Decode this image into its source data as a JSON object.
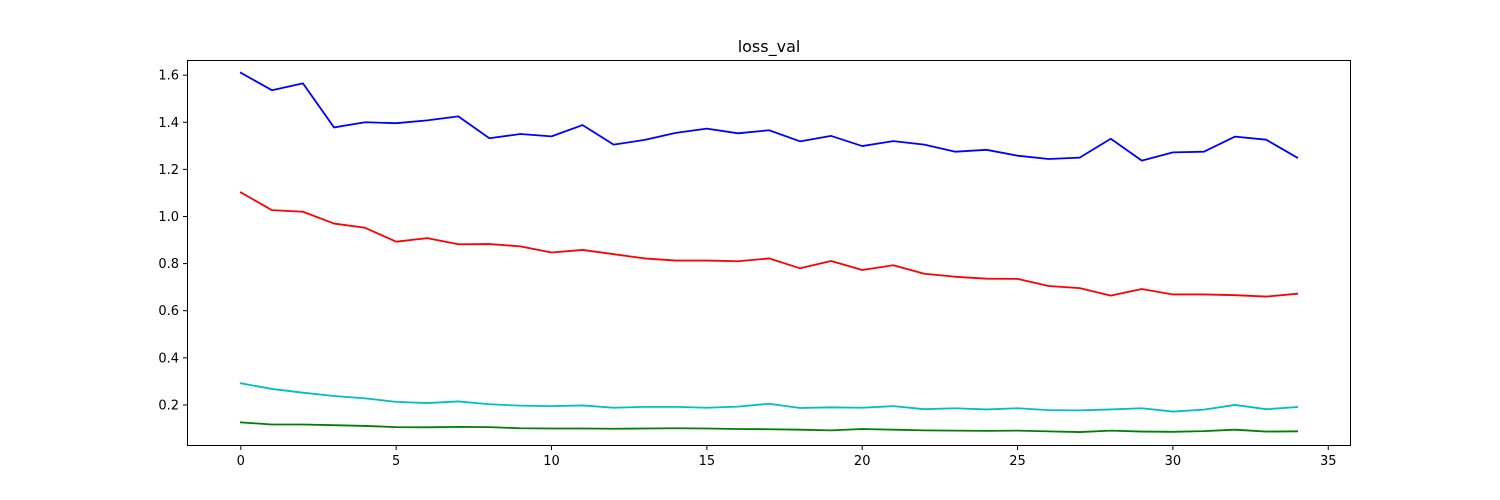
{
  "chart_data": {
    "type": "line",
    "title": "loss_val",
    "xlabel": "",
    "ylabel": "",
    "xlim": [
      -1.7,
      35.7
    ],
    "ylim": [
      0.03,
      1.66
    ],
    "xticks": [
      0,
      5,
      10,
      15,
      20,
      25,
      30,
      35
    ],
    "xtick_labels": [
      "0",
      "5",
      "10",
      "15",
      "20",
      "25",
      "30",
      "35"
    ],
    "yticks": [
      0.2,
      0.4,
      0.6,
      0.8,
      1.0,
      1.2,
      1.4,
      1.6
    ],
    "ytick_labels": [
      "0.2",
      "0.4",
      "0.6",
      "0.8",
      "1.0",
      "1.2",
      "1.4",
      "1.6"
    ],
    "grid": false,
    "x": [
      0,
      1,
      2,
      3,
      4,
      5,
      6,
      7,
      8,
      9,
      10,
      11,
      12,
      13,
      14,
      15,
      16,
      17,
      18,
      19,
      20,
      21,
      22,
      23,
      24,
      25,
      26,
      27,
      28,
      29,
      30,
      31,
      32,
      33,
      34
    ],
    "series": [
      {
        "color": "#0000ff",
        "values": [
          1.61,
          1.536,
          1.565,
          1.378,
          1.4,
          1.396,
          1.408,
          1.425,
          1.332,
          1.35,
          1.34,
          1.388,
          1.305,
          1.325,
          1.355,
          1.373,
          1.353,
          1.366,
          1.319,
          1.342,
          1.299,
          1.32,
          1.305,
          1.275,
          1.283,
          1.258,
          1.244,
          1.25,
          1.33,
          1.237,
          1.272,
          1.275,
          1.339,
          1.326,
          1.25
        ]
      },
      {
        "color": "#ff0000",
        "values": [
          1.102,
          1.027,
          1.02,
          0.97,
          0.952,
          0.893,
          0.908,
          0.882,
          0.883,
          0.873,
          0.847,
          0.858,
          0.84,
          0.822,
          0.813,
          0.813,
          0.81,
          0.822,
          0.78,
          0.811,
          0.773,
          0.793,
          0.757,
          0.744,
          0.736,
          0.735,
          0.705,
          0.696,
          0.664,
          0.692,
          0.669,
          0.669,
          0.666,
          0.66,
          0.672
        ]
      },
      {
        "color": "#00bfbf",
        "values": [
          0.292,
          0.268,
          0.252,
          0.238,
          0.228,
          0.213,
          0.208,
          0.215,
          0.203,
          0.197,
          0.195,
          0.198,
          0.188,
          0.192,
          0.192,
          0.188,
          0.193,
          0.205,
          0.187,
          0.19,
          0.188,
          0.195,
          0.182,
          0.186,
          0.181,
          0.186,
          0.178,
          0.177,
          0.181,
          0.186,
          0.172,
          0.18,
          0.2,
          0.182,
          0.191
        ]
      },
      {
        "color": "#008000",
        "values": [
          0.126,
          0.117,
          0.117,
          0.114,
          0.111,
          0.106,
          0.105,
          0.107,
          0.106,
          0.101,
          0.1,
          0.1,
          0.099,
          0.1,
          0.101,
          0.1,
          0.098,
          0.097,
          0.095,
          0.092,
          0.098,
          0.095,
          0.092,
          0.091,
          0.09,
          0.091,
          0.088,
          0.085,
          0.091,
          0.087,
          0.086,
          0.089,
          0.095,
          0.087,
          0.088
        ]
      }
    ]
  }
}
